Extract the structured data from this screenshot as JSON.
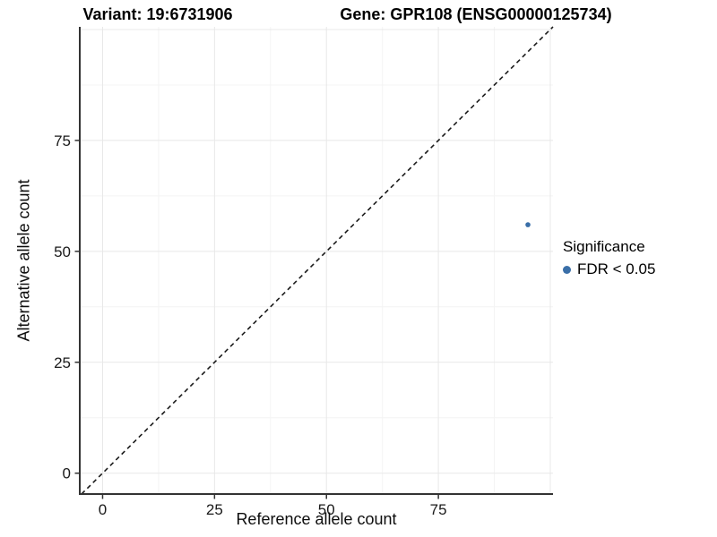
{
  "titles": {
    "variant": "Variant: 19:6731906",
    "gene": "Gene: GPR108 (ENSG00000125734)"
  },
  "legend": {
    "title": "Significance",
    "items": [
      {
        "label": "FDR < 0.05",
        "color": "#3a6fa8",
        "marker": "circle"
      }
    ]
  },
  "chart_data": {
    "type": "scatter",
    "title": "Variant: 19:6731906 | Gene: GPR108 (ENSG00000125734)",
    "xlabel": "Reference allele count",
    "ylabel": "Alternative allele count",
    "points": [
      {
        "x": 95,
        "y": 56,
        "series": "FDR < 0.05"
      }
    ],
    "point_color": "#3a6fa8",
    "point_radius": 2.8,
    "reference_line": {
      "type": "identity y=x",
      "style": "dashed",
      "color": "#1a1a1a"
    },
    "xlim": [
      -5.1,
      100.6
    ],
    "ylim": [
      -4.7,
      100.6
    ],
    "x_ticks": [
      0,
      25,
      50,
      75
    ],
    "y_ticks": [
      0,
      25,
      50,
      75
    ],
    "grid_major": [
      0,
      25,
      50,
      75,
      100
    ],
    "grid_minor": [
      12.5,
      37.5,
      62.5,
      87.5
    ],
    "grid_major_color": "#e8e8e8",
    "grid_minor_color": "#f4f4f4",
    "axis_line_color": "#333333",
    "tick_label_color": "#1a1a1a",
    "legend_position": "right"
  }
}
